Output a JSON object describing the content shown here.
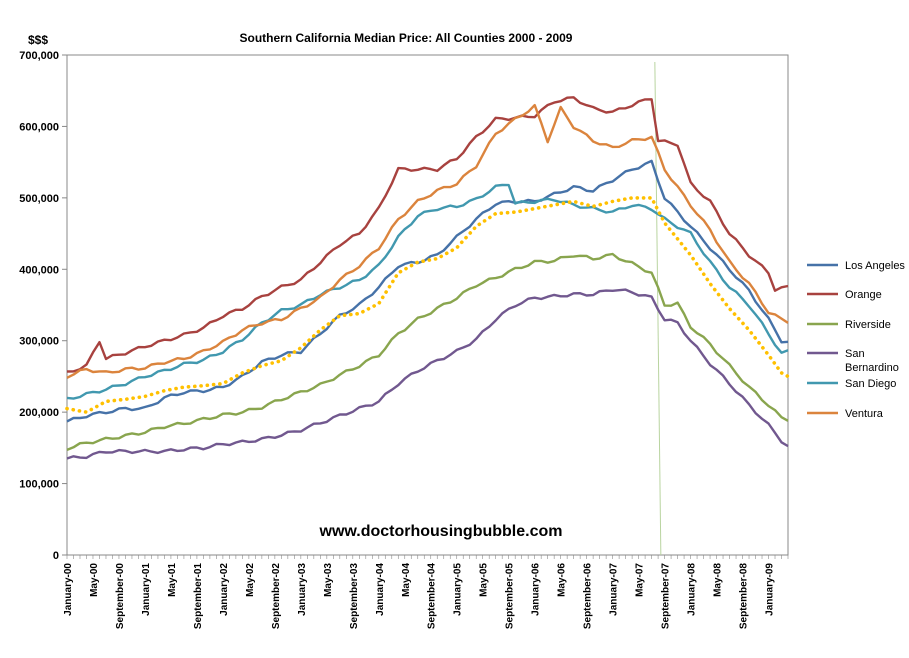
{
  "chart_data": {
    "type": "line",
    "title": "Southern California Median Price:  All Counties 2000 - 2009",
    "unit_label": "$$$",
    "watermark": "www.doctorhousingbubble.com",
    "ylim": [
      0,
      700000
    ],
    "y_ticks": [
      "0",
      "100,000",
      "200,000",
      "300,000",
      "400,000",
      "500,000",
      "600,000",
      "700,000"
    ],
    "y_tick_values": [
      0,
      100000,
      200000,
      300000,
      400000,
      500000,
      600000,
      700000
    ],
    "x_ticks": [
      "January-00",
      "May-00",
      "September-00",
      "January-01",
      "May-01",
      "September-01",
      "January-02",
      "May-02",
      "September-02",
      "January-03",
      "May-03",
      "September-03",
      "January-04",
      "May-04",
      "September-04",
      "January-05",
      "May-05",
      "September-05",
      "January-06",
      "May-06",
      "September-06",
      "January-07",
      "May-07",
      "September-07",
      "January-08",
      "May-08",
      "September-08",
      "January-09"
    ],
    "x_tick_month_index": [
      0,
      4,
      8,
      12,
      16,
      20,
      24,
      28,
      32,
      36,
      40,
      44,
      48,
      52,
      56,
      60,
      64,
      68,
      72,
      76,
      80,
      84,
      88,
      92,
      96,
      100,
      104,
      108
    ],
    "x_range_months": [
      0,
      111
    ],
    "vertical_marker_month": 90.5,
    "legend_position": "right",
    "series": [
      {
        "name": "Los Angeles",
        "color": "#4672A8",
        "knots": [
          [
            0,
            187000
          ],
          [
            3,
            195000
          ],
          [
            6,
            200000
          ],
          [
            9,
            205000
          ],
          [
            12,
            205000
          ],
          [
            15,
            220000
          ],
          [
            18,
            228000
          ],
          [
            21,
            230000
          ],
          [
            24,
            235000
          ],
          [
            27,
            250000
          ],
          [
            30,
            270000
          ],
          [
            33,
            280000
          ],
          [
            36,
            285000
          ],
          [
            39,
            310000
          ],
          [
            42,
            335000
          ],
          [
            45,
            350000
          ],
          [
            48,
            375000
          ],
          [
            51,
            405000
          ],
          [
            54,
            410000
          ],
          [
            57,
            420000
          ],
          [
            60,
            445000
          ],
          [
            63,
            470000
          ],
          [
            66,
            492000
          ],
          [
            69,
            495000
          ],
          [
            72,
            495000
          ],
          [
            75,
            505000
          ],
          [
            78,
            515000
          ],
          [
            81,
            510000
          ],
          [
            84,
            525000
          ],
          [
            87,
            540000
          ],
          [
            90,
            550000
          ],
          [
            92,
            500000
          ],
          [
            96,
            460000
          ],
          [
            99,
            430000
          ],
          [
            102,
            400000
          ],
          [
            105,
            370000
          ],
          [
            108,
            330000
          ],
          [
            110,
            300000
          ],
          [
            111,
            298000
          ]
        ]
      },
      {
        "name": "Orange",
        "color": "#A8423F",
        "knots": [
          [
            0,
            255000
          ],
          [
            3,
            265000
          ],
          [
            5,
            300000
          ],
          [
            6,
            275000
          ],
          [
            9,
            283000
          ],
          [
            12,
            292000
          ],
          [
            15,
            300000
          ],
          [
            18,
            308000
          ],
          [
            21,
            318000
          ],
          [
            24,
            335000
          ],
          [
            27,
            345000
          ],
          [
            30,
            362000
          ],
          [
            33,
            375000
          ],
          [
            36,
            385000
          ],
          [
            39,
            410000
          ],
          [
            42,
            435000
          ],
          [
            45,
            450000
          ],
          [
            48,
            485000
          ],
          [
            51,
            540000
          ],
          [
            54,
            540000
          ],
          [
            57,
            540000
          ],
          [
            60,
            555000
          ],
          [
            63,
            585000
          ],
          [
            66,
            610000
          ],
          [
            69,
            612000
          ],
          [
            72,
            615000
          ],
          [
            75,
            635000
          ],
          [
            78,
            640000
          ],
          [
            81,
            625000
          ],
          [
            84,
            620000
          ],
          [
            87,
            630000
          ],
          [
            90,
            640000
          ],
          [
            91,
            580000
          ],
          [
            94,
            575000
          ],
          [
            96,
            520000
          ],
          [
            99,
            495000
          ],
          [
            102,
            450000
          ],
          [
            105,
            420000
          ],
          [
            108,
            395000
          ],
          [
            109,
            372000
          ],
          [
            111,
            375000
          ]
        ]
      },
      {
        "name": "Riverside",
        "color": "#89A54E",
        "knots": [
          [
            0,
            149000
          ],
          [
            3,
            157000
          ],
          [
            6,
            162000
          ],
          [
            9,
            167000
          ],
          [
            12,
            172000
          ],
          [
            15,
            180000
          ],
          [
            18,
            184000
          ],
          [
            21,
            190000
          ],
          [
            24,
            196000
          ],
          [
            27,
            200000
          ],
          [
            30,
            207000
          ],
          [
            33,
            218000
          ],
          [
            36,
            228000
          ],
          [
            39,
            238000
          ],
          [
            42,
            252000
          ],
          [
            45,
            265000
          ],
          [
            48,
            280000
          ],
          [
            51,
            310000
          ],
          [
            54,
            330000
          ],
          [
            57,
            345000
          ],
          [
            60,
            360000
          ],
          [
            63,
            378000
          ],
          [
            66,
            388000
          ],
          [
            69,
            400000
          ],
          [
            72,
            410000
          ],
          [
            75,
            412000
          ],
          [
            78,
            420000
          ],
          [
            81,
            415000
          ],
          [
            84,
            420000
          ],
          [
            87,
            408000
          ],
          [
            90,
            395000
          ],
          [
            92,
            350000
          ],
          [
            94,
            352000
          ],
          [
            96,
            320000
          ],
          [
            99,
            295000
          ],
          [
            102,
            265000
          ],
          [
            105,
            235000
          ],
          [
            108,
            210000
          ],
          [
            110,
            192000
          ],
          [
            111,
            190000
          ]
        ]
      },
      {
        "name": "San Bernardino",
        "color": "#71588F",
        "knots": [
          [
            0,
            135000
          ],
          [
            3,
            138000
          ],
          [
            6,
            145000
          ],
          [
            9,
            145000
          ],
          [
            12,
            145000
          ],
          [
            15,
            145000
          ],
          [
            18,
            148000
          ],
          [
            21,
            150000
          ],
          [
            24,
            155000
          ],
          [
            27,
            158000
          ],
          [
            30,
            162000
          ],
          [
            33,
            168000
          ],
          [
            36,
            175000
          ],
          [
            39,
            185000
          ],
          [
            42,
            195000
          ],
          [
            45,
            205000
          ],
          [
            48,
            215000
          ],
          [
            51,
            240000
          ],
          [
            54,
            258000
          ],
          [
            57,
            272000
          ],
          [
            60,
            285000
          ],
          [
            63,
            302000
          ],
          [
            66,
            330000
          ],
          [
            69,
            350000
          ],
          [
            72,
            360000
          ],
          [
            75,
            362000
          ],
          [
            78,
            365000
          ],
          [
            81,
            365000
          ],
          [
            84,
            372000
          ],
          [
            87,
            368000
          ],
          [
            90,
            360000
          ],
          [
            92,
            330000
          ],
          [
            94,
            325000
          ],
          [
            96,
            300000
          ],
          [
            99,
            268000
          ],
          [
            102,
            240000
          ],
          [
            105,
            210000
          ],
          [
            108,
            182000
          ],
          [
            110,
            160000
          ],
          [
            111,
            152000
          ]
        ]
      },
      {
        "name": "San Diego",
        "color": "#4198AF",
        "knots": [
          [
            0,
            218000
          ],
          [
            3,
            225000
          ],
          [
            6,
            232000
          ],
          [
            9,
            240000
          ],
          [
            12,
            250000
          ],
          [
            15,
            258000
          ],
          [
            18,
            267000
          ],
          [
            21,
            273000
          ],
          [
            24,
            285000
          ],
          [
            27,
            302000
          ],
          [
            30,
            325000
          ],
          [
            33,
            342000
          ],
          [
            36,
            350000
          ],
          [
            39,
            365000
          ],
          [
            42,
            375000
          ],
          [
            45,
            385000
          ],
          [
            48,
            405000
          ],
          [
            51,
            445000
          ],
          [
            54,
            475000
          ],
          [
            57,
            485000
          ],
          [
            60,
            488000
          ],
          [
            63,
            498000
          ],
          [
            66,
            515000
          ],
          [
            68,
            520000
          ],
          [
            69,
            492000
          ],
          [
            72,
            495000
          ],
          [
            75,
            498000
          ],
          [
            78,
            490000
          ],
          [
            81,
            485000
          ],
          [
            84,
            480000
          ],
          [
            87,
            490000
          ],
          [
            90,
            485000
          ],
          [
            92,
            470000
          ],
          [
            96,
            450000
          ],
          [
            99,
            410000
          ],
          [
            102,
            375000
          ],
          [
            105,
            350000
          ],
          [
            108,
            310000
          ],
          [
            110,
            282000
          ],
          [
            111,
            285000
          ]
        ]
      },
      {
        "name": "Ventura",
        "color": "#DB843D",
        "knots": [
          [
            0,
            250000
          ],
          [
            3,
            260000
          ],
          [
            6,
            255000
          ],
          [
            9,
            260000
          ],
          [
            12,
            262000
          ],
          [
            15,
            270000
          ],
          [
            18,
            275000
          ],
          [
            21,
            285000
          ],
          [
            24,
            298000
          ],
          [
            27,
            315000
          ],
          [
            30,
            325000
          ],
          [
            33,
            330000
          ],
          [
            36,
            345000
          ],
          [
            39,
            360000
          ],
          [
            42,
            385000
          ],
          [
            45,
            405000
          ],
          [
            48,
            430000
          ],
          [
            51,
            470000
          ],
          [
            54,
            495000
          ],
          [
            57,
            510000
          ],
          [
            60,
            520000
          ],
          [
            63,
            545000
          ],
          [
            66,
            590000
          ],
          [
            69,
            610000
          ],
          [
            72,
            628000
          ],
          [
            74,
            580000
          ],
          [
            76,
            625000
          ],
          [
            78,
            600000
          ],
          [
            81,
            580000
          ],
          [
            84,
            570000
          ],
          [
            87,
            580000
          ],
          [
            90,
            585000
          ],
          [
            92,
            540000
          ],
          [
            96,
            490000
          ],
          [
            99,
            455000
          ],
          [
            102,
            410000
          ],
          [
            105,
            380000
          ],
          [
            108,
            340000
          ],
          [
            110,
            330000
          ],
          [
            111,
            327000
          ]
        ]
      }
    ],
    "dotted_series": {
      "color": "#FFC000",
      "knots": [
        [
          0,
          205000
        ],
        [
          3,
          200000
        ],
        [
          6,
          215000
        ],
        [
          9,
          218000
        ],
        [
          12,
          222000
        ],
        [
          15,
          230000
        ],
        [
          18,
          235000
        ],
        [
          21,
          237000
        ],
        [
          24,
          240000
        ],
        [
          27,
          255000
        ],
        [
          30,
          265000
        ],
        [
          33,
          272000
        ],
        [
          36,
          290000
        ],
        [
          39,
          315000
        ],
        [
          42,
          335000
        ],
        [
          45,
          338000
        ],
        [
          48,
          352000
        ],
        [
          51,
          395000
        ],
        [
          54,
          410000
        ],
        [
          57,
          415000
        ],
        [
          60,
          430000
        ],
        [
          63,
          460000
        ],
        [
          66,
          478000
        ],
        [
          69,
          480000
        ],
        [
          72,
          485000
        ],
        [
          75,
          490000
        ],
        [
          78,
          495000
        ],
        [
          81,
          488000
        ],
        [
          84,
          495000
        ],
        [
          87,
          500000
        ],
        [
          90,
          500000
        ],
        [
          92,
          465000
        ],
        [
          96,
          420000
        ],
        [
          99,
          380000
        ],
        [
          102,
          345000
        ],
        [
          105,
          315000
        ],
        [
          108,
          280000
        ],
        [
          110,
          255000
        ],
        [
          111,
          250000
        ]
      ]
    }
  }
}
